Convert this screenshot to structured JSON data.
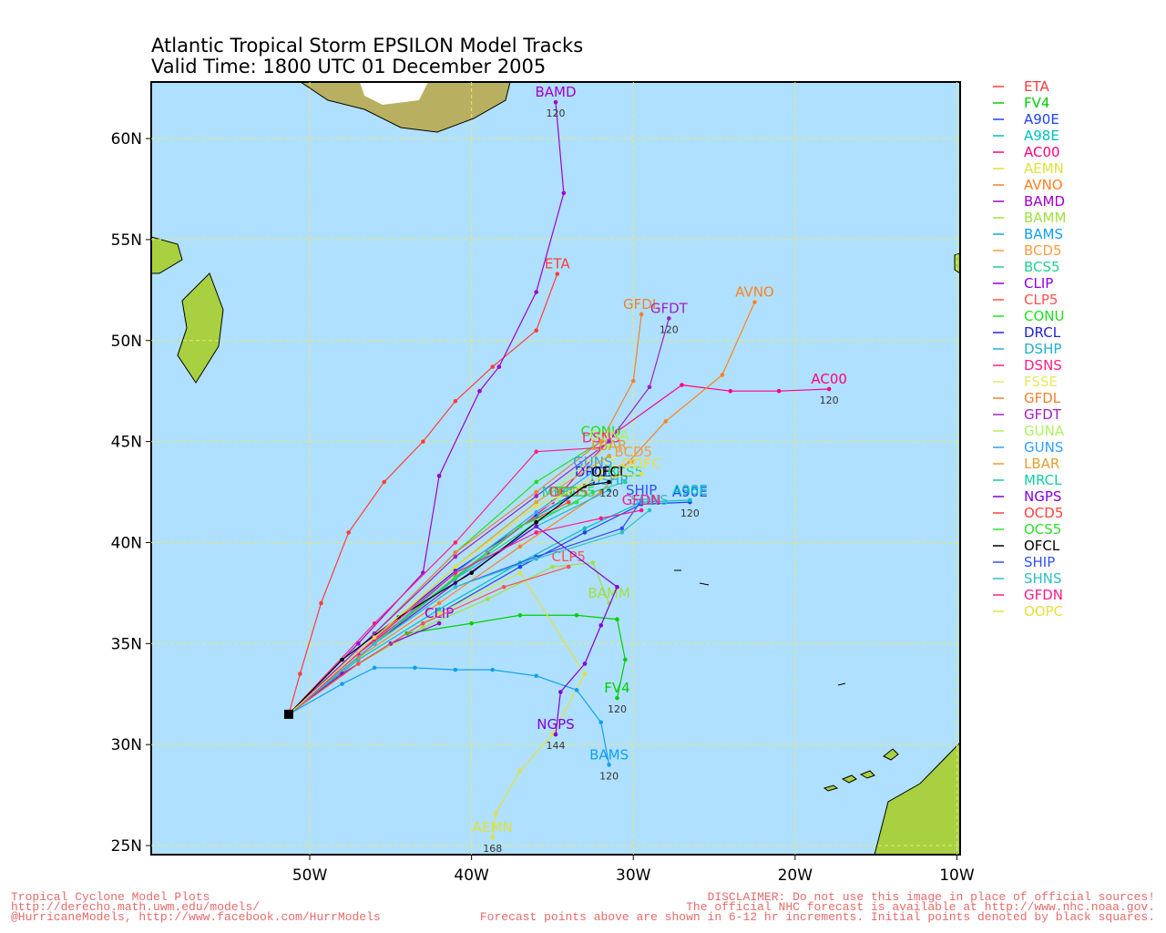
{
  "chart_data": {
    "type": "track",
    "title": "Atlantic Tropical Storm EPSILON Model Tracks",
    "subtitle": "Valid Time: 1800 UTC 01 December 2005",
    "xlim": [
      -59.8,
      -9.8
    ],
    "ylim": [
      24.55,
      62.8
    ],
    "xticks": [
      {
        "value": -50,
        "label": "50W"
      },
      {
        "value": -40,
        "label": "40W"
      },
      {
        "value": -30,
        "label": "30W"
      },
      {
        "value": -20,
        "label": "20W"
      },
      {
        "value": -10,
        "label": "10W"
      }
    ],
    "yticks": [
      {
        "value": 25,
        "label": "25N"
      },
      {
        "value": 30,
        "label": "30N"
      },
      {
        "value": 35,
        "label": "35N"
      },
      {
        "value": 40,
        "label": "40N"
      },
      {
        "value": 45,
        "label": "45N"
      },
      {
        "value": 50,
        "label": "50N"
      },
      {
        "value": 55,
        "label": "55N"
      },
      {
        "value": 60,
        "label": "60N"
      }
    ],
    "grid": true,
    "series": [
      {
        "name": "ETA",
        "color": "#ff3b3b",
        "x": [
          -51.3,
          -50.6,
          -49.3,
          -47.6,
          -45.4,
          -43,
          -41,
          -38.7,
          -36,
          -34.7
        ],
        "values": [
          31.5,
          33.5,
          37,
          40.5,
          43,
          45,
          47,
          48.7,
          50.5,
          53.3
        ]
      },
      {
        "name": "FV4",
        "color": "#00d000",
        "x": [
          -51.3,
          -48,
          -44,
          -40,
          -37,
          -33.5,
          -31,
          -30.5,
          -31
        ],
        "values": [
          31.5,
          33.5,
          35.5,
          36,
          36.4,
          36.4,
          36.2,
          34.2,
          32.3
        ],
        "end_hour": 120
      },
      {
        "name": "A90E",
        "color": "#2040ff",
        "x": [
          -51.3,
          -47,
          -42,
          -37,
          -33,
          -29.5,
          -26.5
        ],
        "values": [
          31.5,
          34,
          36.5,
          38.8,
          40.5,
          41.9,
          42
        ],
        "end_hour": 120
      },
      {
        "name": "A98E",
        "color": "#00c0c0",
        "x": [
          -51.3,
          -47,
          -42,
          -37,
          -33,
          -29.5,
          -26.5
        ],
        "values": [
          31.5,
          34.2,
          36.7,
          39,
          40.7,
          42,
          42.1
        ]
      },
      {
        "name": "AC00",
        "color": "#ff0080",
        "x": [
          -51.3,
          -47,
          -43,
          -39,
          -35,
          -31,
          -27,
          -24,
          -21,
          -17.9
        ],
        "values": [
          31.5,
          34.5,
          37,
          39.5,
          42,
          45.5,
          47.8,
          47.5,
          47.5,
          47.6
        ],
        "end_hour": 120
      },
      {
        "name": "AEMN",
        "color": "#e0e040",
        "x": [
          -51.3,
          -47,
          -42,
          -37,
          -33,
          -35,
          -37,
          -38.5,
          -38.7
        ],
        "values": [
          31.5,
          34,
          36.5,
          38.5,
          33.5,
          30.5,
          28.7,
          26.6,
          25.4
        ],
        "end_hour": 168
      },
      {
        "name": "AVNO",
        "color": "#ff8020",
        "x": [
          -51.3,
          -47,
          -42,
          -37,
          -32,
          -28,
          -24.5,
          -22.5
        ],
        "values": [
          31.5,
          34.3,
          37,
          39.8,
          42.5,
          46,
          48.3,
          51.9
        ]
      },
      {
        "name": "BAMD",
        "color": "#a000d0",
        "x": [
          -51.3,
          -47,
          -43,
          -42,
          -39.5,
          -38.3,
          -36,
          -34.3,
          -34.8
        ],
        "values": [
          31.5,
          35,
          38.5,
          43.3,
          47.5,
          48.7,
          52.4,
          57.3,
          61.8
        ],
        "end_hour": 120
      },
      {
        "name": "BAMM",
        "color": "#a0e040",
        "x": [
          -51.3,
          -47,
          -43,
          -39,
          -35,
          -32.5,
          -31.5
        ],
        "values": [
          31.5,
          34,
          35.8,
          37.2,
          38.8,
          39,
          37
        ]
      },
      {
        "name": "BAMS",
        "color": "#10a0f0",
        "x": [
          -51.3,
          -48,
          -46,
          -43.5,
          -41,
          -38.7,
          -36,
          -33.5,
          -32,
          -31.5
        ],
        "values": [
          31.5,
          33,
          33.8,
          33.8,
          33.7,
          33.7,
          33.4,
          32.7,
          31.1,
          29
        ],
        "end_hour": 120
      },
      {
        "name": "BCD5",
        "color": "#f0a040",
        "x": [
          -51.3,
          -46,
          -41,
          -36,
          -32,
          -30
        ],
        "values": [
          31.5,
          35,
          38.5,
          41.5,
          43.5,
          44
        ]
      },
      {
        "name": "BCS5",
        "color": "#20d090",
        "x": [
          -51.3,
          -46,
          -41,
          -36,
          -32.5,
          -30.5
        ],
        "values": [
          31.5,
          35,
          38.3,
          41,
          42.5,
          43
        ]
      },
      {
        "name": "CLIP",
        "color": "#9000e0",
        "x": [
          -51.3,
          -48,
          -45,
          -42
        ],
        "values": [
          31.5,
          33.5,
          35,
          36
        ]
      },
      {
        "name": "CLP5",
        "color": "#ff5050",
        "x": [
          -51.3,
          -47,
          -43,
          -38,
          -34
        ],
        "values": [
          31.5,
          34,
          36,
          37.8,
          38.8
        ]
      },
      {
        "name": "CONU",
        "color": "#20e020",
        "x": [
          -51.3,
          -46,
          -41,
          -36,
          -32
        ],
        "values": [
          31.5,
          35.5,
          39.5,
          43,
          45
        ]
      },
      {
        "name": "DRCL",
        "color": "#2020e0",
        "x": [
          -51.3,
          -46,
          -41,
          -36,
          -32.5
        ],
        "values": [
          31.5,
          35.3,
          38.6,
          41.3,
          43
        ]
      },
      {
        "name": "DSHP",
        "color": "#20b0d0",
        "x": [
          -51.3,
          -46,
          -41,
          -36,
          -31.5
        ],
        "values": [
          31.5,
          35,
          38.2,
          40.8,
          42.6
        ]
      },
      {
        "name": "DSNS",
        "color": "#ff2080",
        "x": [
          -51.3,
          -46,
          -41,
          -36,
          -32
        ],
        "values": [
          31.5,
          36,
          40,
          44.5,
          44.7
        ]
      },
      {
        "name": "FSSE",
        "color": "#e8e860",
        "x": [
          -51.3,
          -46,
          -41,
          -36,
          -32
        ],
        "values": [
          31.5,
          35,
          38.5,
          41.5,
          43.5
        ]
      },
      {
        "name": "GFDL",
        "color": "#f08030",
        "x": [
          -51.3,
          -46,
          -41,
          -36,
          -32,
          -30,
          -29.5
        ],
        "values": [
          31.5,
          35.5,
          39.5,
          42.5,
          45,
          48,
          51.3
        ]
      },
      {
        "name": "GFDT",
        "color": "#a020c0",
        "x": [
          -51.3,
          -46,
          -41,
          -36,
          -31.5,
          -29,
          -27.8
        ],
        "values": [
          31.5,
          35.5,
          39.3,
          42.3,
          45,
          47.7,
          51.1
        ],
        "end_hour": 120
      },
      {
        "name": "GUNA",
        "color": "#b0f060",
        "x": [
          -51.3,
          -46,
          -41,
          -36,
          -31.5
        ],
        "values": [
          31.5,
          35.2,
          38.8,
          42,
          44.8
        ]
      },
      {
        "name": "GUNS",
        "color": "#30a0ff",
        "x": [
          -51.3,
          -46,
          -41,
          -36,
          -32.5
        ],
        "values": [
          31.5,
          35,
          38.5,
          41.5,
          43.5
        ]
      },
      {
        "name": "LBAR",
        "color": "#e0a030",
        "x": [
          -51.3,
          -46,
          -41,
          -36,
          -31.5
        ],
        "values": [
          31.5,
          35.2,
          38.8,
          42,
          44.3
        ]
      },
      {
        "name": "MRCL",
        "color": "#10d0a0",
        "x": [
          -51.3,
          -46,
          -41,
          -37,
          -34.5
        ],
        "values": [
          31.5,
          35,
          38.2,
          40.8,
          42
        ]
      },
      {
        "name": "NGPS",
        "color": "#8000e0",
        "x": [
          -51.3,
          -46,
          -41,
          -36,
          -31,
          -32,
          -33,
          -34.5,
          -34.8
        ],
        "values": [
          31.5,
          35,
          38,
          40.8,
          37.8,
          35.9,
          34,
          32.6,
          30.5
        ],
        "end_hour": 144
      },
      {
        "name": "OCD5",
        "color": "#ff4040",
        "x": [
          -51.3,
          -46,
          -41,
          -37,
          -34
        ],
        "values": [
          31.5,
          35,
          38.3,
          40.8,
          42
        ]
      },
      {
        "name": "OCS5",
        "color": "#30e030",
        "x": [
          -51.3,
          -46,
          -41,
          -37,
          -33.5
        ],
        "values": [
          31.5,
          35,
          38.3,
          40.8,
          42
        ]
      },
      {
        "name": "OFCL",
        "color": "#000000",
        "x": [
          -51.3,
          -48,
          -44.5,
          -40,
          -36,
          -33,
          -31.5
        ],
        "values": [
          31.5,
          34.2,
          36.3,
          38.5,
          41,
          42.8,
          43
        ],
        "end_hour": 120
      },
      {
        "name": "SHIP",
        "color": "#3050ff",
        "x": [
          -51.3,
          -46,
          -41,
          -36,
          -30.7,
          -29.5
        ],
        "values": [
          31.5,
          35,
          37.8,
          39.3,
          40.7,
          42.1
        ]
      },
      {
        "name": "SHNS",
        "color": "#30c0c0",
        "x": [
          -51.3,
          -46,
          -41,
          -36,
          -30.7,
          -29
        ],
        "values": [
          31.5,
          35,
          37.8,
          39.2,
          40.5,
          41.6
        ]
      },
      {
        "name": "GFDN",
        "color": "#ff1a8c",
        "x": [
          -51.3,
          -46,
          -41,
          -36,
          -32,
          -29.5
        ],
        "values": [
          31.5,
          35.2,
          38.5,
          40.5,
          41.2,
          41.6
        ]
      },
      {
        "name": "OOPC",
        "color": "#e8e040",
        "x": [
          -51.3,
          -46,
          -41,
          -36,
          -32,
          -29.5
        ],
        "values": [
          31.5,
          35.3,
          38.8,
          41.8,
          43.2,
          43.4
        ]
      }
    ]
  },
  "footer": {
    "left": [
      "Tropical Cyclone Model Plots",
      "http://derecho.math.uwm.edu/models/",
      "@HurricaneModels, http://www.facebook.com/HurrModels"
    ],
    "right": [
      "DISCLAIMER: Do not use this image in place of official sources!",
      "The official NHC forecast is available at http://www.nhc.noaa.gov.",
      "Forecast points above are shown in 6-12 hr increments. Initial points denoted by black squares."
    ]
  }
}
